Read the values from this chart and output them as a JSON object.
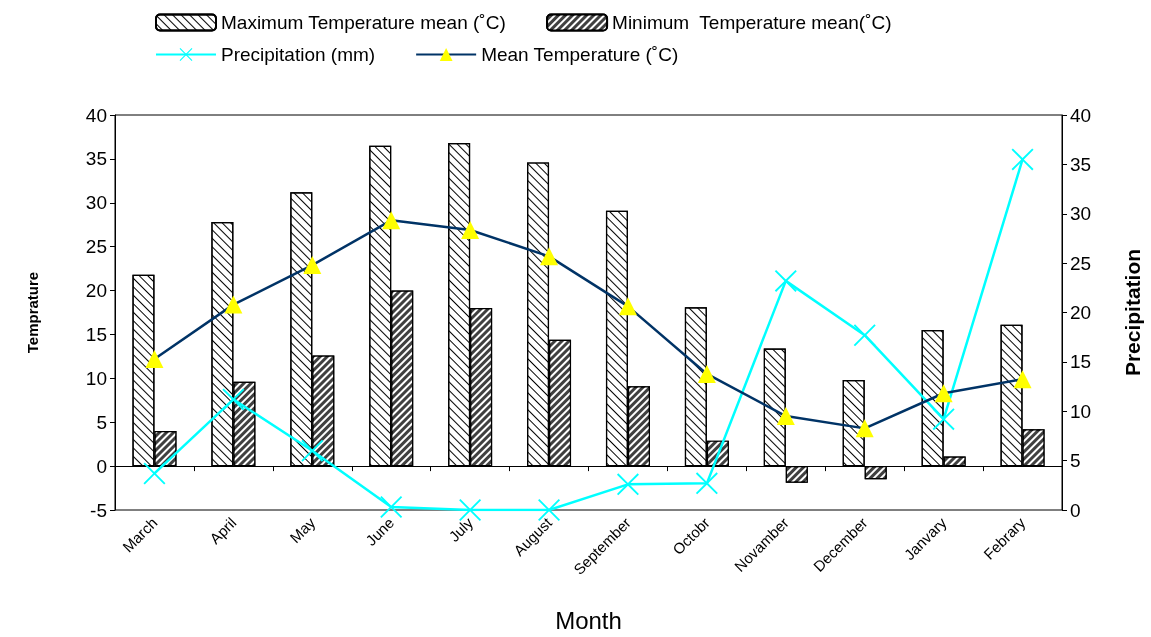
{
  "chart_data": {
    "type": "bar",
    "xlabel": "Month",
    "ylabel": "Temprature",
    "y2label": "Precipitation",
    "categories": [
      "March",
      "April",
      "May",
      "June",
      "July",
      "August",
      "September",
      "Octobr",
      "Novamber",
      "December",
      "Janvary",
      "Febrary"
    ],
    "series": [
      {
        "name": "Maximum Temperature mean (˚C)",
        "color": "#ffffff",
        "values": [
          21.8,
          27.8,
          31.2,
          36.5,
          36.8,
          34.6,
          29.1,
          18.1,
          13.4,
          9.8,
          15.5,
          16.1
        ]
      },
      {
        "name": "Minimum  Temperature mean(˚C)",
        "color": "#404040",
        "values": [
          4,
          9.6,
          12.6,
          20,
          18,
          14.4,
          9.1,
          2.9,
          -1.9,
          -1.5,
          1.1,
          4.2
        ]
      },
      {
        "name": "Precipitation (mm)",
        "type": "line",
        "axis": "y2",
        "color": "#00ffff",
        "marker": "cross",
        "values": [
          3.7,
          11.2,
          6.0,
          0.3,
          0,
          0,
          2.6,
          2.7,
          23.2,
          17.7,
          9.2,
          35.5
        ]
      },
      {
        "name": "Mean Temperature (˚C)",
        "type": "line",
        "color": "#003366",
        "marker": "triangle",
        "values": [
          12.2,
          18.4,
          22.9,
          28.0,
          26.9,
          23.9,
          18.2,
          10.5,
          5.7,
          4.3,
          8.3,
          9.9
        ]
      }
    ],
    "ylim": [
      -5,
      40
    ],
    "yticks": [
      -5,
      0,
      5,
      10,
      15,
      20,
      25,
      30,
      35,
      40
    ],
    "y2lim": [
      0,
      40
    ],
    "y2ticks": [
      0,
      5,
      10,
      15,
      20,
      25,
      30,
      35,
      40
    ],
    "legend": "top"
  }
}
